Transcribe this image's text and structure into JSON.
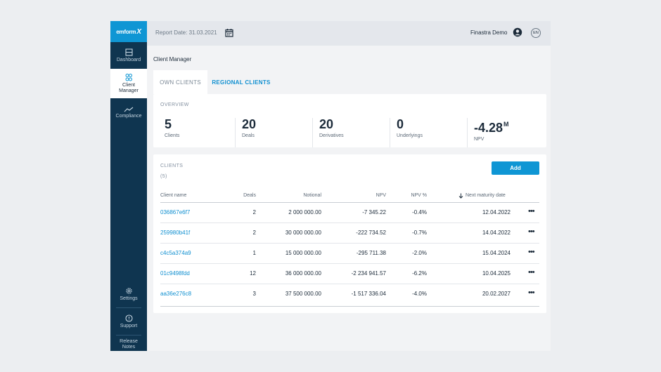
{
  "logo": {
    "brand": "emform",
    "mark": "X"
  },
  "sidebar": {
    "items": [
      {
        "label": "Dashboard",
        "icon": "dashboard-icon"
      },
      {
        "label": "Client Manager",
        "icon": "client-manager-icon",
        "active": true
      },
      {
        "label": "Compliance",
        "icon": "compliance-icon"
      }
    ],
    "bottom": [
      {
        "label": "Settings",
        "icon": "gear-icon"
      },
      {
        "label": "Support",
        "icon": "help-icon"
      },
      {
        "label": "Release Notes"
      }
    ]
  },
  "topbar": {
    "report_date": "Report Date: 31.03.2021",
    "user": "Finastra Demo",
    "lang": "EN"
  },
  "breadcrumb": "Client Manager",
  "tabs": [
    {
      "label": "OWN CLIENTS",
      "active": true
    },
    {
      "label": "REGIONAL CLIENTS"
    }
  ],
  "overview": {
    "title": "OVERVIEW",
    "stats": [
      {
        "value": "5",
        "label": "Clients"
      },
      {
        "value": "20",
        "label": "Deals"
      },
      {
        "value": "20",
        "label": "Derivatives"
      },
      {
        "value": "0",
        "label": "Underlyings"
      },
      {
        "value": "-4.28",
        "suffix": "M",
        "label": "NPV"
      }
    ]
  },
  "clients": {
    "title": "CLIENTS",
    "count": "(5)",
    "add_label": "Add",
    "columns": [
      "Client name",
      "Deals",
      "Notional",
      "NPV",
      "NPV %",
      "Next maturity date"
    ],
    "sort_column": "Next maturity date",
    "rows": [
      {
        "name": "036867e6f7",
        "deals": "2",
        "notional": "2 000 000.00",
        "npv": "-7 345.22",
        "npv_pct": "-0.4%",
        "maturity": "12.04.2022"
      },
      {
        "name": "259980b41f",
        "deals": "2",
        "notional": "30 000 000.00",
        "npv": "-222 734.52",
        "npv_pct": "-0.7%",
        "maturity": "14.04.2022"
      },
      {
        "name": "c4c5a374a9",
        "deals": "1",
        "notional": "15 000 000.00",
        "npv": "-295 711.38",
        "npv_pct": "-2.0%",
        "maturity": "15.04.2024"
      },
      {
        "name": "01c9498fdd",
        "deals": "12",
        "notional": "36 000 000.00",
        "npv": "-2 234 941.57",
        "npv_pct": "-6.2%",
        "maturity": "10.04.2025"
      },
      {
        "name": "aa36e276c8",
        "deals": "3",
        "notional": "37 500 000.00",
        "npv": "-1 517 336.04",
        "npv_pct": "-4.0%",
        "maturity": "20.02.2027"
      }
    ],
    "row_action": "•••"
  },
  "colors": {
    "accent": "#0f96d4",
    "sidebar": "#0f3550",
    "text": "#1c2b3a"
  }
}
